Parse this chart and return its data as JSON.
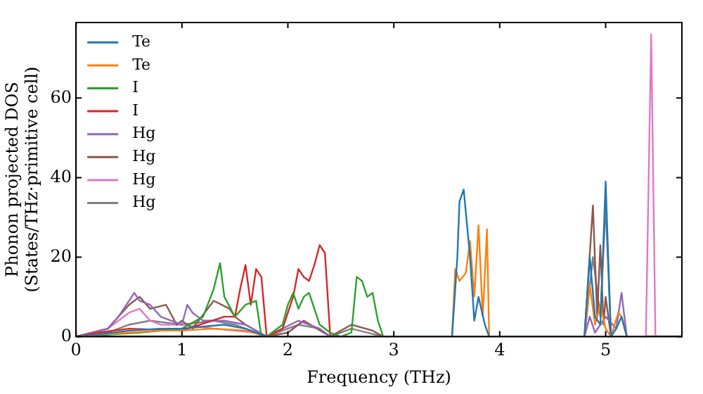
{
  "chart_data": {
    "type": "line",
    "xlabel": "Frequency (THz)",
    "ylabel": "Phonon projected DOS\n(States/THz·primitive cell)",
    "xlim": [
      0,
      5.72
    ],
    "ylim": [
      0,
      79
    ],
    "xticks": [
      0,
      1,
      2,
      3,
      4,
      5
    ],
    "yticks": [
      0,
      20,
      40,
      60
    ],
    "grid": false,
    "legend": "top left",
    "marker": "none",
    "line_style": "solid",
    "series": [
      {
        "name": "Te",
        "color": "#1f77b4",
        "x": [
          0,
          0.2,
          0.5,
          0.8,
          1.0,
          1.2,
          1.4,
          1.6,
          1.8,
          3.55,
          3.6,
          3.62,
          3.66,
          3.72,
          3.76,
          3.8,
          3.86,
          3.9,
          4.8,
          4.85,
          4.9,
          4.95,
          5.0,
          5.05,
          5.1,
          5.15,
          5.2
        ],
        "values": [
          0,
          0.5,
          1.5,
          2,
          2,
          2.5,
          3,
          2,
          0,
          0,
          20,
          34,
          37,
          20,
          4,
          10,
          3,
          0,
          0,
          20,
          5,
          3,
          39,
          0,
          2,
          5,
          0
        ]
      },
      {
        "name": "Te",
        "color": "#ff7f0e",
        "x": [
          0,
          0.2,
          0.5,
          0.8,
          1.0,
          1.3,
          1.6,
          1.8,
          3.55,
          3.58,
          3.62,
          3.68,
          3.72,
          3.76,
          3.8,
          3.84,
          3.88,
          3.9,
          4.8,
          4.85,
          4.9,
          4.95,
          5.0,
          5.05,
          5.12,
          5.15,
          5.2
        ],
        "values": [
          0,
          0.5,
          1,
          1.5,
          1.5,
          2,
          1.5,
          0,
          0,
          17,
          14,
          16,
          24,
          10,
          28,
          5,
          27,
          0,
          0,
          13,
          3,
          8,
          2,
          0,
          6,
          5,
          0
        ]
      },
      {
        "name": "I",
        "color": "#2ca02c",
        "x": [
          0,
          0.3,
          0.6,
          1.0,
          1.2,
          1.3,
          1.36,
          1.4,
          1.5,
          1.6,
          1.7,
          1.75,
          1.8,
          1.95,
          2.0,
          2.05,
          2.1,
          2.15,
          2.2,
          2.3,
          2.4,
          2.5,
          2.6,
          2.65,
          2.7,
          2.75,
          2.8,
          2.85,
          2.9
        ],
        "values": [
          0,
          0.5,
          1,
          2,
          5,
          12,
          18.5,
          10,
          5,
          8,
          9,
          0,
          0,
          3,
          8,
          11,
          7,
          10,
          11,
          3,
          1,
          0,
          1,
          15,
          14,
          10,
          11,
          4,
          0
        ]
      },
      {
        "name": "I",
        "color": "#d62728",
        "x": [
          0,
          0.2,
          0.5,
          1.0,
          1.4,
          1.5,
          1.55,
          1.6,
          1.65,
          1.7,
          1.75,
          1.8,
          1.95,
          2.05,
          2.1,
          2.15,
          2.2,
          2.25,
          2.3,
          2.35,
          2.4
        ],
        "values": [
          0,
          1,
          2,
          1.5,
          5,
          5,
          12,
          18,
          8,
          17,
          15,
          0,
          2,
          10,
          17,
          15,
          14,
          18,
          23,
          21,
          0
        ]
      },
      {
        "name": "Hg",
        "color": "#9467bd",
        "x": [
          0,
          0.3,
          0.4,
          0.5,
          0.55,
          0.6,
          0.7,
          0.8,
          0.9,
          1.0,
          1.05,
          1.1,
          1.2,
          1.4,
          1.6,
          1.8,
          2.1,
          2.3,
          2.4,
          4.8,
          4.85,
          4.9,
          5.0,
          5.1,
          5.15,
          5.2
        ],
        "values": [
          0,
          2,
          5,
          9,
          11,
          9,
          8,
          5,
          4,
          3,
          8,
          6,
          4,
          4,
          3,
          0,
          4,
          2,
          0,
          0,
          5,
          1,
          5,
          2,
          11,
          0
        ]
      },
      {
        "name": "Hg",
        "color": "#8c564b",
        "x": [
          0,
          0.3,
          0.5,
          0.6,
          0.7,
          0.85,
          0.95,
          1.0,
          1.1,
          1.3,
          1.45,
          1.5,
          1.6,
          1.8,
          2.0,
          2.15,
          2.4,
          2.6,
          2.8,
          2.9,
          4.8,
          4.88,
          4.92,
          4.95,
          4.98,
          5.0,
          5.05
        ],
        "values": [
          0,
          2,
          8,
          10,
          7,
          8,
          3,
          4,
          2,
          9,
          7,
          5,
          3,
          0,
          1,
          4,
          0,
          3,
          1.5,
          0,
          0,
          33,
          5,
          23,
          3,
          10,
          0
        ]
      },
      {
        "name": "Hg",
        "color": "#e377c2",
        "x": [
          0,
          0.3,
          0.5,
          0.6,
          0.7,
          0.8,
          1.0,
          1.3,
          1.7,
          1.8,
          5.38,
          5.43,
          5.47
        ],
        "values": [
          0,
          2,
          6,
          7,
          4,
          3,
          3,
          2,
          1,
          0,
          0,
          76,
          0
        ]
      },
      {
        "name": "Hg",
        "color": "#7f7f7f",
        "x": [
          0,
          0.3,
          0.5,
          0.7,
          1.0,
          1.3,
          1.5,
          1.7,
          1.8,
          2.1,
          2.3,
          2.4,
          2.6,
          2.9,
          4.8,
          4.88,
          4.95,
          5.0,
          5.05
        ],
        "values": [
          0,
          1,
          3,
          4,
          3,
          4,
          3,
          1,
          0,
          3,
          2,
          0,
          2,
          0,
          0,
          20,
          5,
          33,
          0
        ]
      }
    ]
  }
}
